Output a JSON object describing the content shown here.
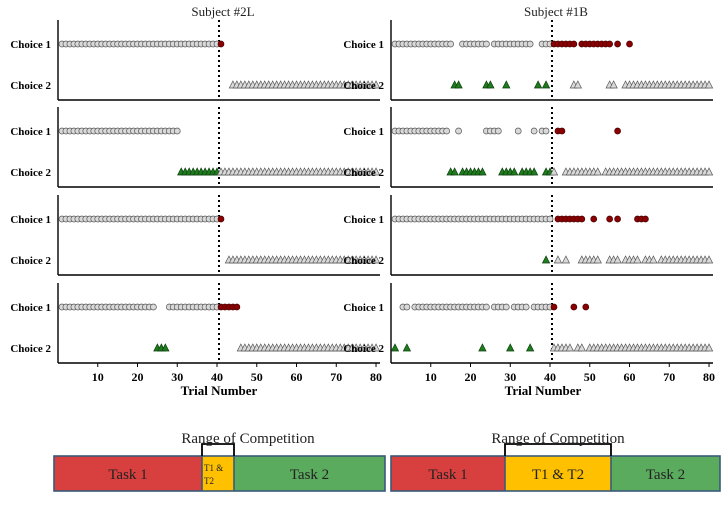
{
  "chart_data": {
    "type": "scatter",
    "x_axis": {
      "label": "Trial Number",
      "ticks": [
        10,
        20,
        30,
        40,
        50,
        60,
        70,
        80
      ],
      "range": [
        0,
        81
      ]
    },
    "row_labels": [
      "Choice 1",
      "Choice 2"
    ],
    "switch_trial": 40.5,
    "marker_colors": {
      "choice1_task1": "#d9d9d9",
      "choice1_task2": "#8b0000",
      "choice2_task1": "#1e7b1e",
      "choice2_task2": "#d9d9d9"
    },
    "columns": [
      {
        "title": "Subject #2L",
        "panels": [
          {
            "choice1": [
              [
                1,
                40
              ],
              [
                41,
                41
              ]
            ],
            "choice2": [
              [
                44,
                80
              ]
            ]
          },
          {
            "choice1": [
              [
                1,
                30
              ]
            ],
            "choice2": [
              [
                31,
                41
              ],
              [
                42,
                80
              ]
            ]
          },
          {
            "choice1": [
              [
                1,
                40
              ],
              [
                41,
                41
              ]
            ],
            "choice2": [
              [
                43,
                80
              ]
            ]
          },
          {
            "choice1": [
              [
                1,
                24
              ],
              [
                28,
                40
              ],
              [
                41,
                45
              ]
            ],
            "choice2": [
              [
                25,
                27
              ],
              [
                46,
                80
              ]
            ]
          }
        ]
      },
      {
        "title": "Subject #1B",
        "panels": [
          {
            "choice1": [
              [
                1,
                15
              ],
              [
                18,
                24
              ],
              [
                26,
                35
              ],
              [
                38,
                40
              ],
              [
                41,
                46
              ],
              [
                48,
                55
              ],
              [
                57,
                57
              ],
              [
                60,
                60
              ]
            ],
            "choice2": [
              [
                16,
                17
              ],
              [
                24,
                25
              ],
              [
                29,
                29
              ],
              [
                37,
                37
              ],
              [
                39,
                39
              ],
              [
                46,
                47
              ],
              [
                55,
                56
              ],
              [
                59,
                80
              ]
            ]
          },
          {
            "choice1": [
              [
                1,
                14
              ],
              [
                17,
                17
              ],
              [
                24,
                27
              ],
              [
                32,
                32
              ],
              [
                36,
                36
              ],
              [
                38,
                39
              ],
              [
                42,
                43
              ],
              [
                57,
                57
              ]
            ],
            "choice2": [
              [
                15,
                16
              ],
              [
                18,
                23
              ],
              [
                28,
                31
              ],
              [
                33,
                36
              ],
              [
                39,
                40
              ],
              [
                41,
                41
              ],
              [
                44,
                52
              ],
              [
                54,
                80
              ]
            ]
          },
          {
            "choice1": [
              [
                1,
                38
              ],
              [
                39,
                40
              ],
              [
                42,
                48
              ],
              [
                51,
                51
              ],
              [
                55,
                55
              ],
              [
                57,
                57
              ],
              [
                62,
                64
              ]
            ],
            "choice2": [
              [
                39,
                39
              ],
              [
                42,
                42
              ],
              [
                44,
                44
              ],
              [
                48,
                52
              ],
              [
                55,
                57
              ],
              [
                59,
                62
              ],
              [
                64,
                66
              ],
              [
                68,
                80
              ]
            ]
          },
          {
            "choice1": [
              [
                3,
                4
              ],
              [
                6,
                24
              ],
              [
                26,
                29
              ],
              [
                31,
                34
              ],
              [
                36,
                40
              ],
              [
                41,
                41
              ],
              [
                46,
                46
              ],
              [
                49,
                49
              ]
            ],
            "choice2": [
              [
                1,
                1
              ],
              [
                4,
                4
              ],
              [
                23,
                23
              ],
              [
                30,
                30
              ],
              [
                35,
                35
              ],
              [
                41,
                45
              ],
              [
                47,
                48
              ],
              [
                50,
                80
              ]
            ]
          }
        ]
      }
    ]
  },
  "legend": {
    "range_label": "Range of Competition",
    "bars": [
      {
        "name": "Subject #2L",
        "task1_label": "Task 1",
        "overlap_label_line1": "T1 &",
        "overlap_label_line2": "T2",
        "task2_label": "Task 2",
        "colors": {
          "task1": "#d83f3f",
          "overlap": "#ffc000",
          "task2": "#5bab5f"
        }
      },
      {
        "name": "Subject #1B",
        "task1_label": "Task 1",
        "overlap_label_line1": "T1 & T2",
        "overlap_label_line2": "",
        "task2_label": "Task 2",
        "colors": {
          "task1": "#d83f3f",
          "overlap": "#ffc000",
          "task2": "#5bab5f"
        }
      }
    ]
  }
}
